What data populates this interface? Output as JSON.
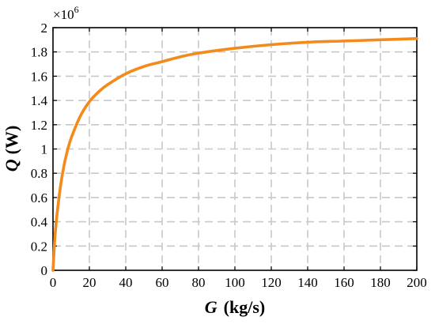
{
  "chart_data": {
    "type": "line",
    "xlabel": {
      "symbol": "G",
      "unit": "(kg/s)"
    },
    "ylabel": {
      "symbol": "Q",
      "unit": "(W)"
    },
    "y_multiplier": {
      "base": "×10",
      "exponent": "6"
    },
    "xlim": [
      0,
      200
    ],
    "ylim": [
      0,
      2
    ],
    "x_ticks": [
      0,
      20,
      40,
      60,
      80,
      100,
      120,
      140,
      160,
      180,
      200
    ],
    "y_ticks": [
      0,
      0.2,
      0.4,
      0.6,
      0.8,
      1,
      1.2,
      1.4,
      1.6,
      1.8,
      2
    ],
    "x_tick_labels": [
      "0",
      "20",
      "40",
      "60",
      "80",
      "100",
      "120",
      "140",
      "160",
      "180",
      "200"
    ],
    "y_tick_labels": [
      "0",
      "0.2",
      "0.4",
      "0.6",
      "0.8",
      "1",
      "1.2",
      "1.4",
      "1.6",
      "1.8",
      "2"
    ],
    "grid": true,
    "grid_style": "dashed",
    "series": [
      {
        "color": "#F28A1C",
        "x": [
          0,
          1,
          2,
          4,
          6,
          8,
          10,
          15,
          20,
          25,
          30,
          40,
          50,
          60,
          70,
          80,
          100,
          120,
          140,
          160,
          180,
          200
        ],
        "y": [
          0,
          0.26,
          0.43,
          0.68,
          0.86,
          0.99,
          1.09,
          1.27,
          1.39,
          1.47,
          1.53,
          1.62,
          1.68,
          1.72,
          1.76,
          1.79,
          1.83,
          1.86,
          1.88,
          1.89,
          1.9,
          1.91
        ]
      }
    ]
  }
}
